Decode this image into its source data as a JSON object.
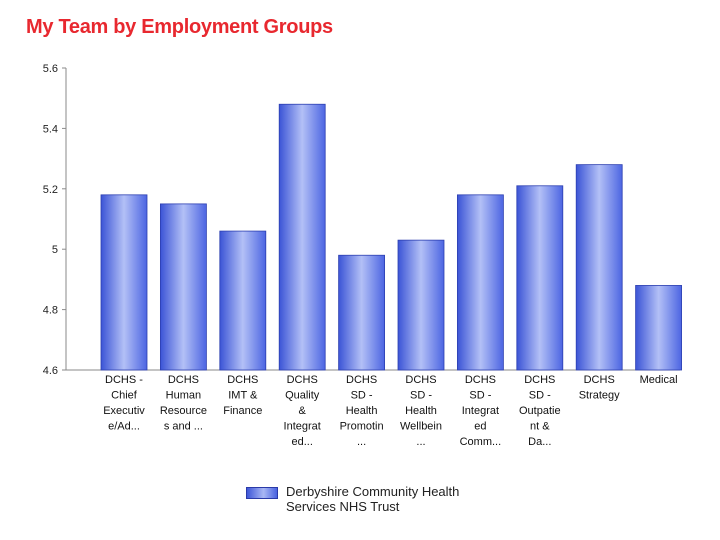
{
  "title": "My Team by Employment Groups",
  "chart_data": {
    "type": "bar",
    "title": "My Team by Employment Groups",
    "categories": [
      [
        "DCHS -",
        "Chief",
        "Executiv",
        "e/Ad..."
      ],
      [
        "DCHS",
        "Human",
        "Resource",
        "s and ..."
      ],
      [
        "DCHS",
        "IMT &",
        "Finance"
      ],
      [
        "DCHS",
        "Quality",
        "&",
        "Integrat",
        "ed..."
      ],
      [
        "DCHS",
        "SD -",
        "Health",
        "Promotin",
        "..."
      ],
      [
        "DCHS",
        "SD -",
        "Health",
        "Wellbein",
        "..."
      ],
      [
        "DCHS",
        "SD -",
        "Integrat",
        "ed",
        "Comm..."
      ],
      [
        "DCHS",
        "SD -",
        "Outpatie",
        "nt &",
        "Da..."
      ],
      [
        "DCHS",
        "Strategy"
      ],
      [
        "Medical"
      ]
    ],
    "series": [
      {
        "name": "Derbyshire Community Health Services NHS Trust",
        "values": [
          5.18,
          5.15,
          5.06,
          5.48,
          4.98,
          5.03,
          5.18,
          5.21,
          5.28,
          4.88
        ]
      }
    ],
    "ylim": [
      4.6,
      5.6
    ],
    "yticks": [
      "4.6",
      "4.8",
      "5",
      "5.2",
      "5.4",
      "5.6"
    ],
    "ytick_values": [
      4.6,
      4.8,
      5.0,
      5.2,
      5.4,
      5.6
    ],
    "grid": false,
    "legend_position": "bottom",
    "colors": {
      "bar": "#5a72e6",
      "bar_light": "#b3c0f6",
      "bar_dark": "#3a50c8",
      "title": "#e8282f",
      "axis": "#8a8a8a"
    }
  },
  "legend": {
    "label": "Derbyshire Community Health Services NHS Trust"
  }
}
